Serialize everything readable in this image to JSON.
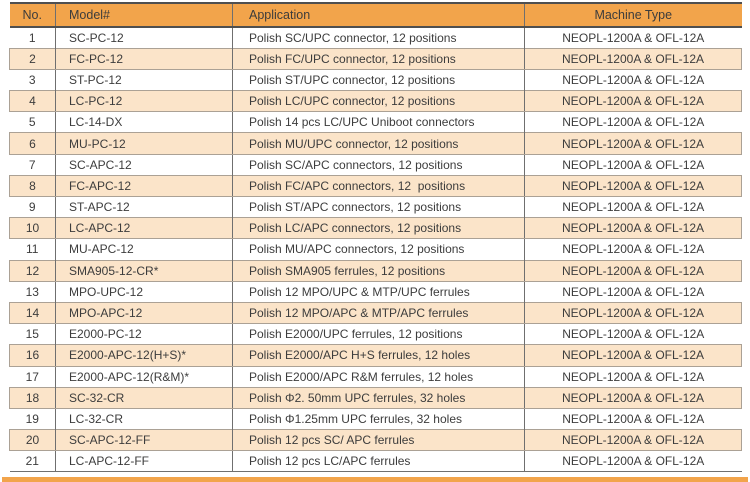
{
  "colors": {
    "header_bg": "#F2A44B",
    "stripe_bg": "#FBE4C9",
    "border_dark": "#4F4F4F",
    "border_mid": "#6F6F6F",
    "border_light": "#ABA195",
    "text": "#3C3C3C",
    "page_bg": "#FFFFFF"
  },
  "table": {
    "column_keys": [
      "no",
      "model",
      "application",
      "machine"
    ],
    "columns": {
      "no": "No.",
      "model": "Model#",
      "application": "Application",
      "machine": "Machine Type"
    },
    "rows": [
      {
        "no": "1",
        "model": "SC-PC-12",
        "application": "Polish SC/UPC connector, 12 positions",
        "machine": "NEOPL-1200A & OFL-12A"
      },
      {
        "no": "2",
        "model": "FC-PC-12",
        "application": "Polish FC/UPC connector, 12 positions",
        "machine": "NEOPL-1200A & OFL-12A"
      },
      {
        "no": "3",
        "model": "ST-PC-12",
        "application": "Polish ST/UPC connector, 12 positions",
        "machine": "NEOPL-1200A & OFL-12A"
      },
      {
        "no": "4",
        "model": "LC-PC-12",
        "application": "Polish LC/UPC connector, 12 positions",
        "machine": "NEOPL-1200A & OFL-12A"
      },
      {
        "no": "5",
        "model": "LC-14-DX",
        "application": "Polish 14 pcs LC/UPC Uniboot connectors",
        "machine": "NEOPL-1200A & OFL-12A"
      },
      {
        "no": "6",
        "model": "MU-PC-12",
        "application": "Polish MU/UPC connector, 12 positions",
        "machine": "NEOPL-1200A & OFL-12A"
      },
      {
        "no": "7",
        "model": "SC-APC-12",
        "application": "Polish SC/APC connectors, 12 positions",
        "machine": "NEOPL-1200A & OFL-12A"
      },
      {
        "no": "8",
        "model": "FC-APC-12",
        "application": "Polish FC/APC connectors, 12  positions",
        "machine": "NEOPL-1200A & OFL-12A"
      },
      {
        "no": "9",
        "model": "ST-APC-12",
        "application": "Polish ST/APC connectors, 12 positions",
        "machine": "NEOPL-1200A & OFL-12A"
      },
      {
        "no": "10",
        "model": "LC-APC-12",
        "application": "Polish LC/APC connectors, 12 positions",
        "machine": "NEOPL-1200A & OFL-12A"
      },
      {
        "no": "11",
        "model": "MU-APC-12",
        "application": "Polish MU/APC connectors, 12 positions",
        "machine": "NEOPL-1200A & OFL-12A"
      },
      {
        "no": "12",
        "model": "SMA905-12-CR*",
        "application": "Polish SMA905 ferrules, 12 positions",
        "machine": "NEOPL-1200A & OFL-12A"
      },
      {
        "no": "13",
        "model": "MPO-UPC-12",
        "application": "Polish 12 MPO/UPC & MTP/UPC ferrules",
        "machine": "NEOPL-1200A & OFL-12A"
      },
      {
        "no": "14",
        "model": "MPO-APC-12",
        "application": "Polish 12 MPO/APC & MTP/APC ferrules",
        "machine": "NEOPL-1200A & OFL-12A"
      },
      {
        "no": "15",
        "model": "E2000-PC-12",
        "application": "Polish E2000/UPC ferrules, 12 positions",
        "machine": "NEOPL-1200A & OFL-12A"
      },
      {
        "no": "16",
        "model": "E2000-APC-12(H+S)*",
        "application": "Polish E2000/APC H+S ferrules, 12 holes",
        "machine": "NEOPL-1200A & OFL-12A"
      },
      {
        "no": "17",
        "model": "E2000-APC-12(R&M)*",
        "application": "Polish E2000/APC R&M ferrules, 12 holes",
        "machine": "NEOPL-1200A & OFL-12A"
      },
      {
        "no": "18",
        "model": "SC-32-CR",
        "application": "Polish Φ2. 50mm UPC ferrules, 32 holes",
        "machine": "NEOPL-1200A & OFL-12A"
      },
      {
        "no": "19",
        "model": "LC-32-CR",
        "application": "Polish Φ1.25mm UPC ferrules, 32 holes",
        "machine": "NEOPL-1200A & OFL-12A"
      },
      {
        "no": "20",
        "model": "SC-APC-12-FF",
        "application": "Polish 12 pcs SC/ APC ferrules",
        "machine": "NEOPL-1200A & OFL-12A"
      },
      {
        "no": "21",
        "model": "LC-APC-12-FF",
        "application": "Polish 12 pcs LC/APC ferrules",
        "machine": "NEOPL-1200A & OFL-12A"
      }
    ]
  }
}
